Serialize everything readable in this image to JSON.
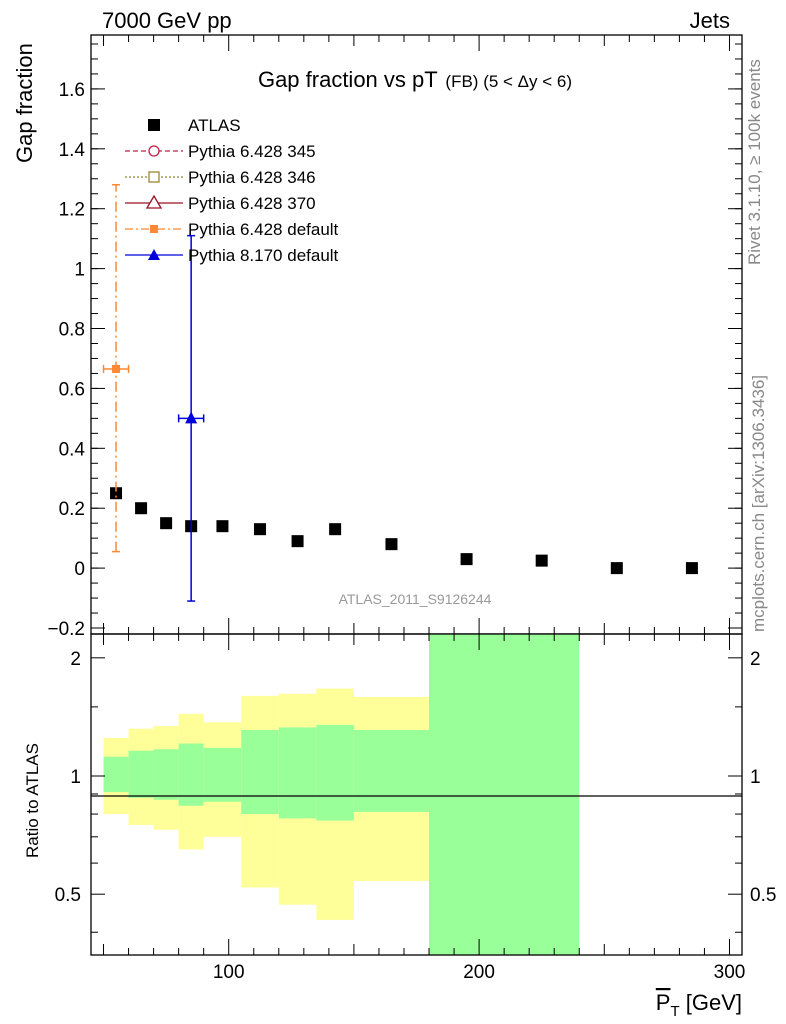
{
  "header": {
    "left": "7000 GeV pp",
    "right": "Jets"
  },
  "side_labels": {
    "rivet": "Rivet 3.1.10, ≥ 100k events",
    "mcplots": "mcplots.cern.ch [arXiv:1306.3436]"
  },
  "chart_data": [
    {
      "type": "scatter",
      "title_main": "Gap fraction vs pT",
      "title_sub": "(FB) (5 < Δy < 6)",
      "ylabel": "Gap fraction",
      "watermark": "ATLAS_2011_S9126244",
      "xlim": [
        45,
        305
      ],
      "ylim": [
        -0.22,
        1.78
      ],
      "yticks": [
        -0.2,
        0,
        0.2,
        0.4,
        0.6,
        0.8,
        1,
        1.2,
        1.4,
        1.6
      ],
      "ytick_labels": [
        "−0.2",
        "0",
        "0.2",
        "0.4",
        "0.6",
        "0.8",
        "1",
        "1.2",
        "1.4",
        "1.6"
      ],
      "legend_placement": "top-left",
      "series": [
        {
          "name": "ATLAS",
          "marker": "square",
          "color": "#000000",
          "x": [
            55,
            65,
            75,
            85,
            97.5,
            112.5,
            127.5,
            142.5,
            165,
            195,
            225,
            255,
            285
          ],
          "y": [
            0.25,
            0.2,
            0.15,
            0.14,
            0.14,
            0.13,
            0.09,
            0.13,
            0.08,
            0.03,
            0.025,
            0.0,
            0.0
          ]
        },
        {
          "name": "Pythia 6.428 345",
          "marker": "open-circle",
          "color": "#bb2244",
          "line": "dashed",
          "x": [],
          "y": []
        },
        {
          "name": "Pythia 6.428 346",
          "marker": "open-square",
          "color": "#998833",
          "line": "dotted",
          "x": [],
          "y": []
        },
        {
          "name": "Pythia 6.428 370",
          "marker": "open-triangle",
          "color": "#991122",
          "line": "solid",
          "x": [],
          "y": []
        },
        {
          "name": "Pythia 6.428 default",
          "marker": "filled-square",
          "color": "#ff8833",
          "line": "dash-dot",
          "x": [
            55
          ],
          "y": [
            0.665
          ],
          "xerr": [
            [
              5,
              5
            ]
          ],
          "yerr": [
            [
              0.61,
              0.615
            ]
          ]
        },
        {
          "name": "Pythia 8.170 default",
          "marker": "filled-triangle",
          "color": "#0000dd",
          "line": "solid",
          "x": [
            85
          ],
          "y": [
            0.5
          ],
          "xerr": [
            [
              5,
              5
            ]
          ],
          "yerr": [
            [
              0.61,
              0.61
            ]
          ]
        }
      ]
    },
    {
      "type": "area",
      "ylabel": "Ratio to ATLAS",
      "xlabel": "P_T [GeV]",
      "xlim": [
        45,
        305
      ],
      "ylim": [
        0.35,
        2.3
      ],
      "yscale": "log",
      "yticks": [
        0.5,
        1,
        2
      ],
      "ytick_labels": [
        "0.5",
        "1",
        "2"
      ],
      "xticks": [
        100,
        200,
        300
      ],
      "xtick_labels": [
        "100",
        "200",
        "300"
      ],
      "reference_line": 1,
      "bands": {
        "yellow_color": "#ffff99",
        "green_color": "#99ff99",
        "bins": [
          {
            "x0": 50,
            "x1": 60,
            "y_lo": 0.8,
            "y_hi": 1.25,
            "g_lo": 0.91,
            "g_hi": 1.12
          },
          {
            "x0": 60,
            "x1": 70,
            "y_lo": 0.75,
            "y_hi": 1.32,
            "g_lo": 0.88,
            "g_hi": 1.16
          },
          {
            "x0": 70,
            "x1": 80,
            "y_lo": 0.73,
            "y_hi": 1.34,
            "g_lo": 0.87,
            "g_hi": 1.17
          },
          {
            "x0": 80,
            "x1": 90,
            "y_lo": 0.65,
            "y_hi": 1.44,
            "g_lo": 0.84,
            "g_hi": 1.21
          },
          {
            "x0": 90,
            "x1": 105,
            "y_lo": 0.7,
            "y_hi": 1.37,
            "g_lo": 0.86,
            "g_hi": 1.18
          },
          {
            "x0": 105,
            "x1": 120,
            "y_lo": 0.52,
            "y_hi": 1.6,
            "g_lo": 0.8,
            "g_hi": 1.31
          },
          {
            "x0": 120,
            "x1": 135,
            "y_lo": 0.47,
            "y_hi": 1.62,
            "g_lo": 0.78,
            "g_hi": 1.33
          },
          {
            "x0": 135,
            "x1": 150,
            "y_lo": 0.43,
            "y_hi": 1.67,
            "g_lo": 0.77,
            "g_hi": 1.35
          },
          {
            "x0": 150,
            "x1": 180,
            "y_lo": 0.54,
            "y_hi": 1.59,
            "g_lo": 0.81,
            "g_hi": 1.31
          },
          {
            "x0": 180,
            "x1": 240,
            "y_lo": 0.2,
            "y_hi": 5,
            "g_lo": 0.2,
            "g_hi": 5
          }
        ]
      }
    }
  ]
}
